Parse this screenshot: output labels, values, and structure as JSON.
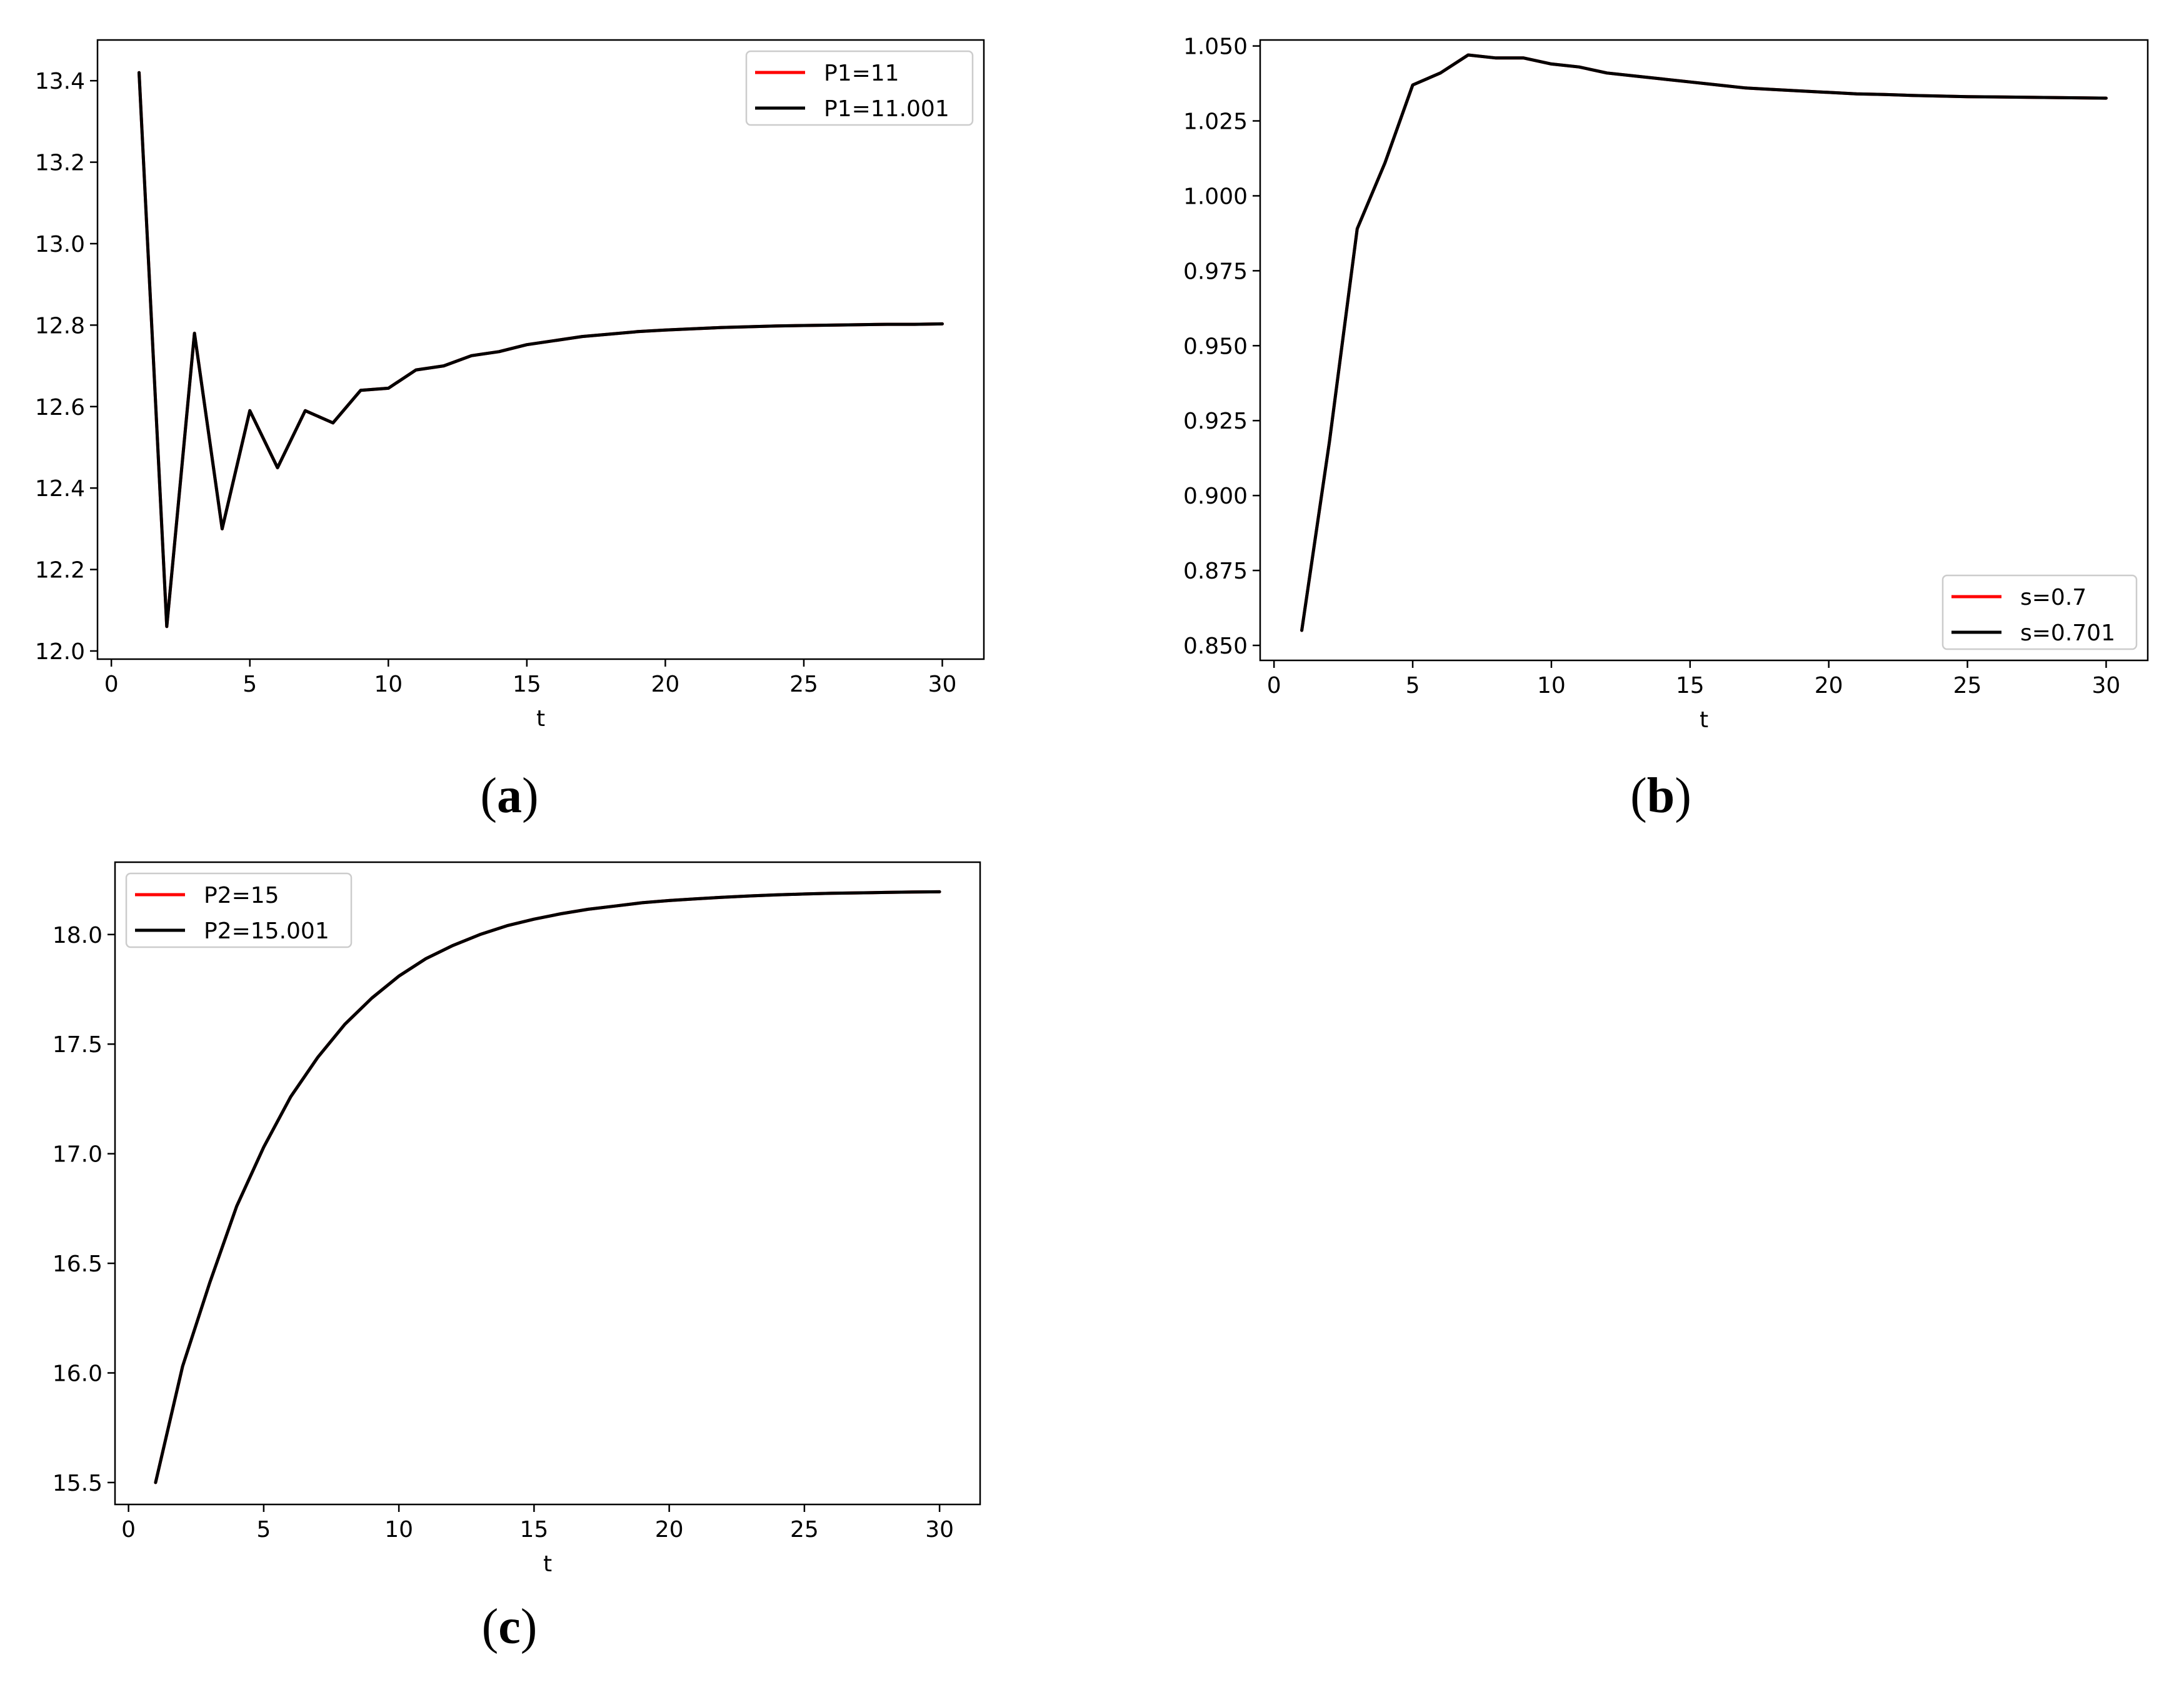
{
  "chart_data": [
    {
      "type": "line",
      "panel_label": "(a)",
      "panel_letter": "a",
      "xlabel": "t",
      "ylabel": "",
      "xlim": [
        -0.5,
        31.5
      ],
      "ylim": [
        11.98,
        13.5
      ],
      "xticks": [
        0,
        5,
        10,
        15,
        20,
        25,
        30
      ],
      "xtick_labels": [
        "0",
        "5",
        "10",
        "15",
        "20",
        "25",
        "30"
      ],
      "yticks": [
        12.0,
        12.2,
        12.4,
        12.6,
        12.8,
        13.0,
        13.2,
        13.4
      ],
      "ytick_labels": [
        "12.0",
        "12.2",
        "12.4",
        "12.6",
        "12.8",
        "13.0",
        "13.2",
        "13.4"
      ],
      "legend_position": "top-right",
      "grid": false,
      "x": [
        1,
        2,
        3,
        4,
        5,
        6,
        7,
        8,
        9,
        10,
        11,
        12,
        13,
        14,
        15,
        16,
        17,
        18,
        19,
        20,
        21,
        22,
        23,
        24,
        25,
        26,
        27,
        28,
        29,
        30
      ],
      "series": [
        {
          "name": "P1=11",
          "color": "#ff0000",
          "values": [
            13.42,
            12.06,
            12.78,
            12.3,
            12.59,
            12.45,
            12.59,
            12.56,
            12.64,
            12.645,
            12.69,
            12.7,
            12.725,
            12.735,
            12.752,
            12.762,
            12.772,
            12.778,
            12.784,
            12.788,
            12.791,
            12.794,
            12.796,
            12.798,
            12.799,
            12.8,
            12.801,
            12.802,
            12.802,
            12.803
          ]
        },
        {
          "name": "P1=11.001",
          "color": "#000000",
          "values": [
            13.42,
            12.06,
            12.78,
            12.3,
            12.59,
            12.45,
            12.59,
            12.56,
            12.64,
            12.645,
            12.69,
            12.7,
            12.725,
            12.735,
            12.752,
            12.762,
            12.772,
            12.778,
            12.784,
            12.788,
            12.791,
            12.794,
            12.796,
            12.798,
            12.799,
            12.8,
            12.801,
            12.802,
            12.802,
            12.803
          ]
        }
      ]
    },
    {
      "type": "line",
      "panel_label": "(b)",
      "panel_letter": "b",
      "xlabel": "t",
      "ylabel": "",
      "xlim": [
        -0.5,
        31.5
      ],
      "ylim": [
        0.845,
        1.052
      ],
      "xticks": [
        0,
        5,
        10,
        15,
        20,
        25,
        30
      ],
      "xtick_labels": [
        "0",
        "5",
        "10",
        "15",
        "20",
        "25",
        "30"
      ],
      "yticks": [
        0.85,
        0.875,
        0.9,
        0.925,
        0.95,
        0.975,
        1.0,
        1.025,
        1.05
      ],
      "ytick_labels": [
        "0.850",
        "0.875",
        "0.900",
        "0.925",
        "0.950",
        "0.975",
        "1.000",
        "1.025",
        "1.050"
      ],
      "legend_position": "lower-right",
      "grid": false,
      "x": [
        1,
        2,
        3,
        4,
        5,
        6,
        7,
        8,
        9,
        10,
        11,
        12,
        13,
        14,
        15,
        16,
        17,
        18,
        19,
        20,
        21,
        22,
        23,
        24,
        25,
        26,
        27,
        28,
        29,
        30
      ],
      "series": [
        {
          "name": "s=0.7",
          "color": "#ff0000",
          "values": [
            0.855,
            0.918,
            0.989,
            1.011,
            1.037,
            1.041,
            1.047,
            1.046,
            1.046,
            1.044,
            1.043,
            1.041,
            1.04,
            1.039,
            1.038,
            1.037,
            1.036,
            1.0355,
            1.035,
            1.0345,
            1.034,
            1.0338,
            1.0335,
            1.0333,
            1.0331,
            1.033,
            1.0329,
            1.0328,
            1.0327,
            1.0326
          ]
        },
        {
          "name": "s=0.701",
          "color": "#000000",
          "values": [
            0.855,
            0.918,
            0.989,
            1.011,
            1.037,
            1.041,
            1.047,
            1.046,
            1.046,
            1.044,
            1.043,
            1.041,
            1.04,
            1.039,
            1.038,
            1.037,
            1.036,
            1.0355,
            1.035,
            1.0345,
            1.034,
            1.0338,
            1.0335,
            1.0333,
            1.0331,
            1.033,
            1.0329,
            1.0328,
            1.0327,
            1.0326
          ]
        }
      ]
    },
    {
      "type": "line",
      "panel_label": "(c)",
      "panel_letter": "c",
      "xlabel": "t",
      "ylabel": "",
      "xlim": [
        -0.5,
        31.5
      ],
      "ylim": [
        15.4,
        18.33
      ],
      "xticks": [
        0,
        5,
        10,
        15,
        20,
        25,
        30
      ],
      "xtick_labels": [
        "0",
        "5",
        "10",
        "15",
        "20",
        "25",
        "30"
      ],
      "yticks": [
        15.5,
        16.0,
        16.5,
        17.0,
        17.5,
        18.0
      ],
      "ytick_labels": [
        "15.5",
        "16.0",
        "16.5",
        "17.0",
        "17.5",
        "18.0"
      ],
      "legend_position": "top-left",
      "grid": false,
      "x": [
        1,
        2,
        3,
        4,
        5,
        6,
        7,
        8,
        9,
        10,
        11,
        12,
        13,
        14,
        15,
        16,
        17,
        18,
        19,
        20,
        21,
        22,
        23,
        24,
        25,
        26,
        27,
        28,
        29,
        30
      ],
      "series": [
        {
          "name": "P2=15",
          "color": "#ff0000",
          "values": [
            15.5,
            16.03,
            16.41,
            16.76,
            17.03,
            17.26,
            17.44,
            17.59,
            17.71,
            17.81,
            17.89,
            17.95,
            18.0,
            18.04,
            18.07,
            18.095,
            18.115,
            18.13,
            18.145,
            18.155,
            18.163,
            18.17,
            18.176,
            18.181,
            18.185,
            18.188,
            18.19,
            18.192,
            18.194,
            18.195
          ]
        },
        {
          "name": "P2=15.001",
          "color": "#000000",
          "values": [
            15.5,
            16.03,
            16.41,
            16.76,
            17.03,
            17.26,
            17.44,
            17.59,
            17.71,
            17.81,
            17.89,
            17.95,
            18.0,
            18.04,
            18.07,
            18.095,
            18.115,
            18.13,
            18.145,
            18.155,
            18.163,
            18.17,
            18.176,
            18.181,
            18.185,
            18.188,
            18.19,
            18.192,
            18.194,
            18.195
          ]
        }
      ]
    }
  ]
}
